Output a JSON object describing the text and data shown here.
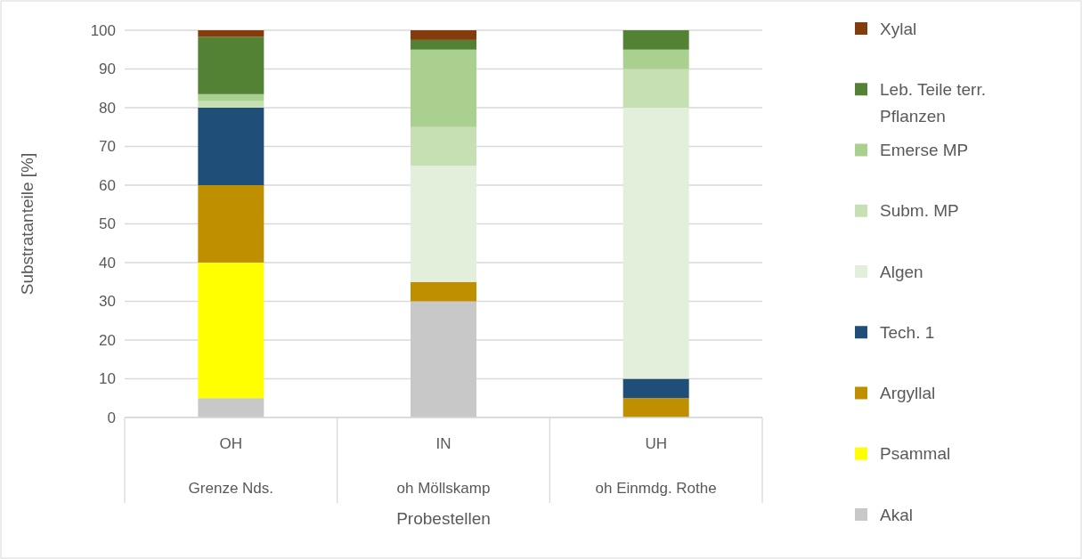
{
  "chart_data": {
    "type": "bar",
    "stacked": true,
    "categories": [
      "OH\nGrenze Nds.",
      "IN\noh Möllskamp",
      "UH\noh Einmdg. Rothe"
    ],
    "xlabel": "Probestellen",
    "ylabel": "Substratanteile [%]",
    "ylim": [
      0,
      100
    ],
    "yticks": [
      0,
      10,
      20,
      30,
      40,
      50,
      60,
      70,
      80,
      90,
      100
    ],
    "grid": "y",
    "legend": "right",
    "series": [
      {
        "name": "Akal",
        "color": "#c8c8c8",
        "values": [
          5,
          30,
          0
        ]
      },
      {
        "name": "Psammal",
        "color": "#ffff00",
        "values": [
          35,
          0,
          0
        ]
      },
      {
        "name": "Argyllal",
        "color": "#bf8f00",
        "values": [
          20,
          5,
          5
        ]
      },
      {
        "name": "Tech. 1",
        "color": "#1f4e79",
        "values": [
          20,
          0,
          5
        ]
      },
      {
        "name": "Algen",
        "color": "#e2efda",
        "values": [
          0,
          30,
          70
        ]
      },
      {
        "name": "Subm. MP",
        "color": "#c6e0b4",
        "values": [
          1.7,
          10,
          10
        ]
      },
      {
        "name": "Emerse MP",
        "color": "#a9d08e",
        "values": [
          1.8,
          20,
          5
        ]
      },
      {
        "name": "Leb. Teile terr. Pflanzen",
        "color": "#548235",
        "values": [
          14.8,
          2.5,
          5
        ]
      },
      {
        "name": "Xylal",
        "color": "#843c0c",
        "values": [
          1.7,
          2.5,
          0
        ]
      }
    ]
  }
}
